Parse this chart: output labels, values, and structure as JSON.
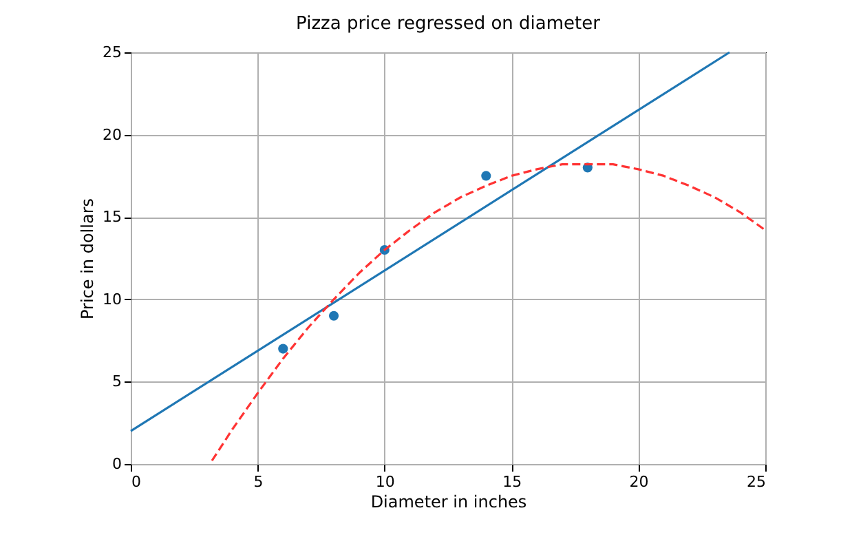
{
  "chart_data": {
    "type": "scatter",
    "title": "Pizza price regressed on diameter",
    "xlabel": "Diameter in inches",
    "ylabel": "Price in dollars",
    "xlim": [
      0,
      25
    ],
    "ylim": [
      0,
      25
    ],
    "xticks": [
      0,
      5,
      10,
      15,
      20,
      25
    ],
    "yticks": [
      0,
      5,
      10,
      15,
      20,
      25
    ],
    "grid": true,
    "series": [
      {
        "color": "#1f77b4",
        "marker": "circle",
        "x": [
          6,
          8,
          10,
          14,
          18
        ],
        "values": [
          7,
          9,
          13,
          17.5,
          18
        ]
      },
      {
        "type": "line",
        "color": "#1f77b4",
        "line_style": "solid",
        "x": [
          0,
          23.59
        ],
        "values": [
          2,
          25
        ]
      },
      {
        "type": "line",
        "color": "#ff3333",
        "line_style": "dashed",
        "x": [
          3.2,
          4,
          5,
          6,
          7,
          8,
          9,
          10,
          11,
          12,
          13,
          14,
          15,
          16,
          17,
          18,
          19,
          20,
          21,
          22,
          23,
          24,
          25
        ],
        "values": [
          0.2,
          2.1,
          4.3,
          6.4,
          8.3,
          10,
          11.6,
          13,
          14.2,
          15.3,
          16.2,
          16.9,
          17.5,
          17.9,
          18.2,
          18.2,
          18.2,
          17.9,
          17.5,
          16.9,
          16.2,
          15.3,
          14.2
        ]
      }
    ]
  }
}
